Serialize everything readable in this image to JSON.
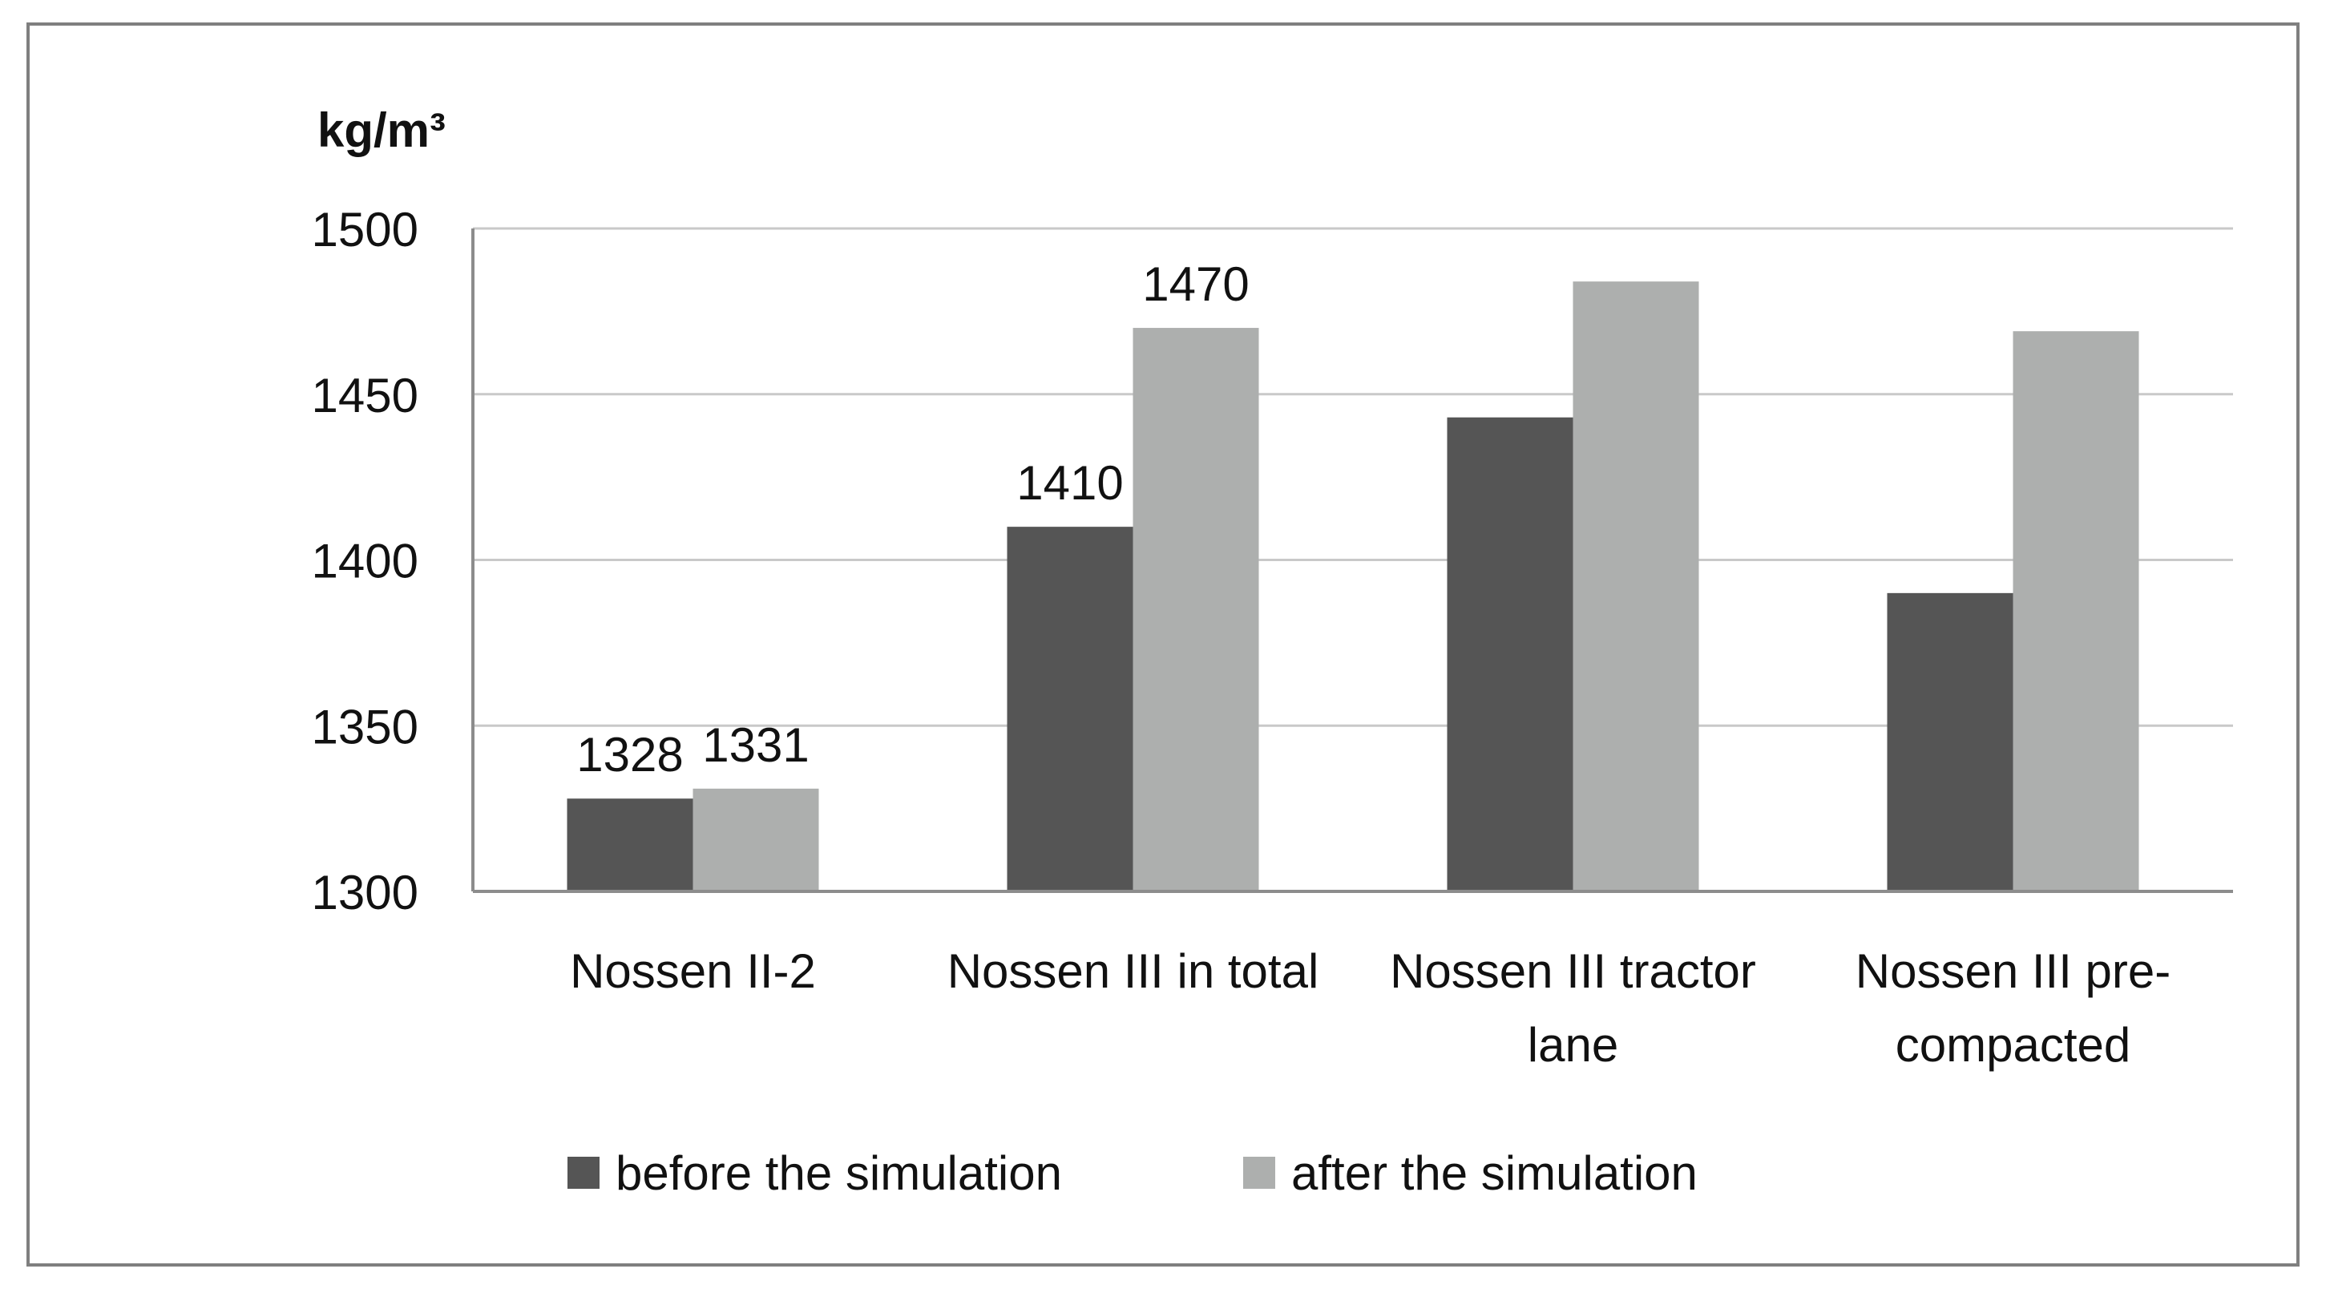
{
  "chart_data": {
    "type": "bar",
    "title": "",
    "xlabel": "",
    "ylabel": "kg/m³",
    "ylim": [
      1300,
      1500
    ],
    "yticks": [
      1300,
      1350,
      1400,
      1450,
      1500
    ],
    "grid": true,
    "legend_position": "bottom",
    "categories": [
      [
        "Nossen II-2"
      ],
      [
        "Nossen III in total"
      ],
      [
        "Nossen III tractor",
        "lane"
      ],
      [
        "Nossen III pre-",
        "compacted"
      ]
    ],
    "series": [
      {
        "name": "before the simulation",
        "color": "#555555",
        "values": [
          1328,
          1410,
          1443,
          1390
        ],
        "labels": [
          "1328",
          "1410",
          null,
          null
        ]
      },
      {
        "name": "after the simulation",
        "color": "#adafae",
        "values": [
          1331,
          1470,
          1484,
          1469
        ],
        "labels": [
          "1331",
          "1470",
          null,
          null
        ]
      }
    ],
    "frame_color": "#7f7f7f",
    "gridline_color": "#c9c9c9",
    "axis_color": "#8c8c8c"
  }
}
